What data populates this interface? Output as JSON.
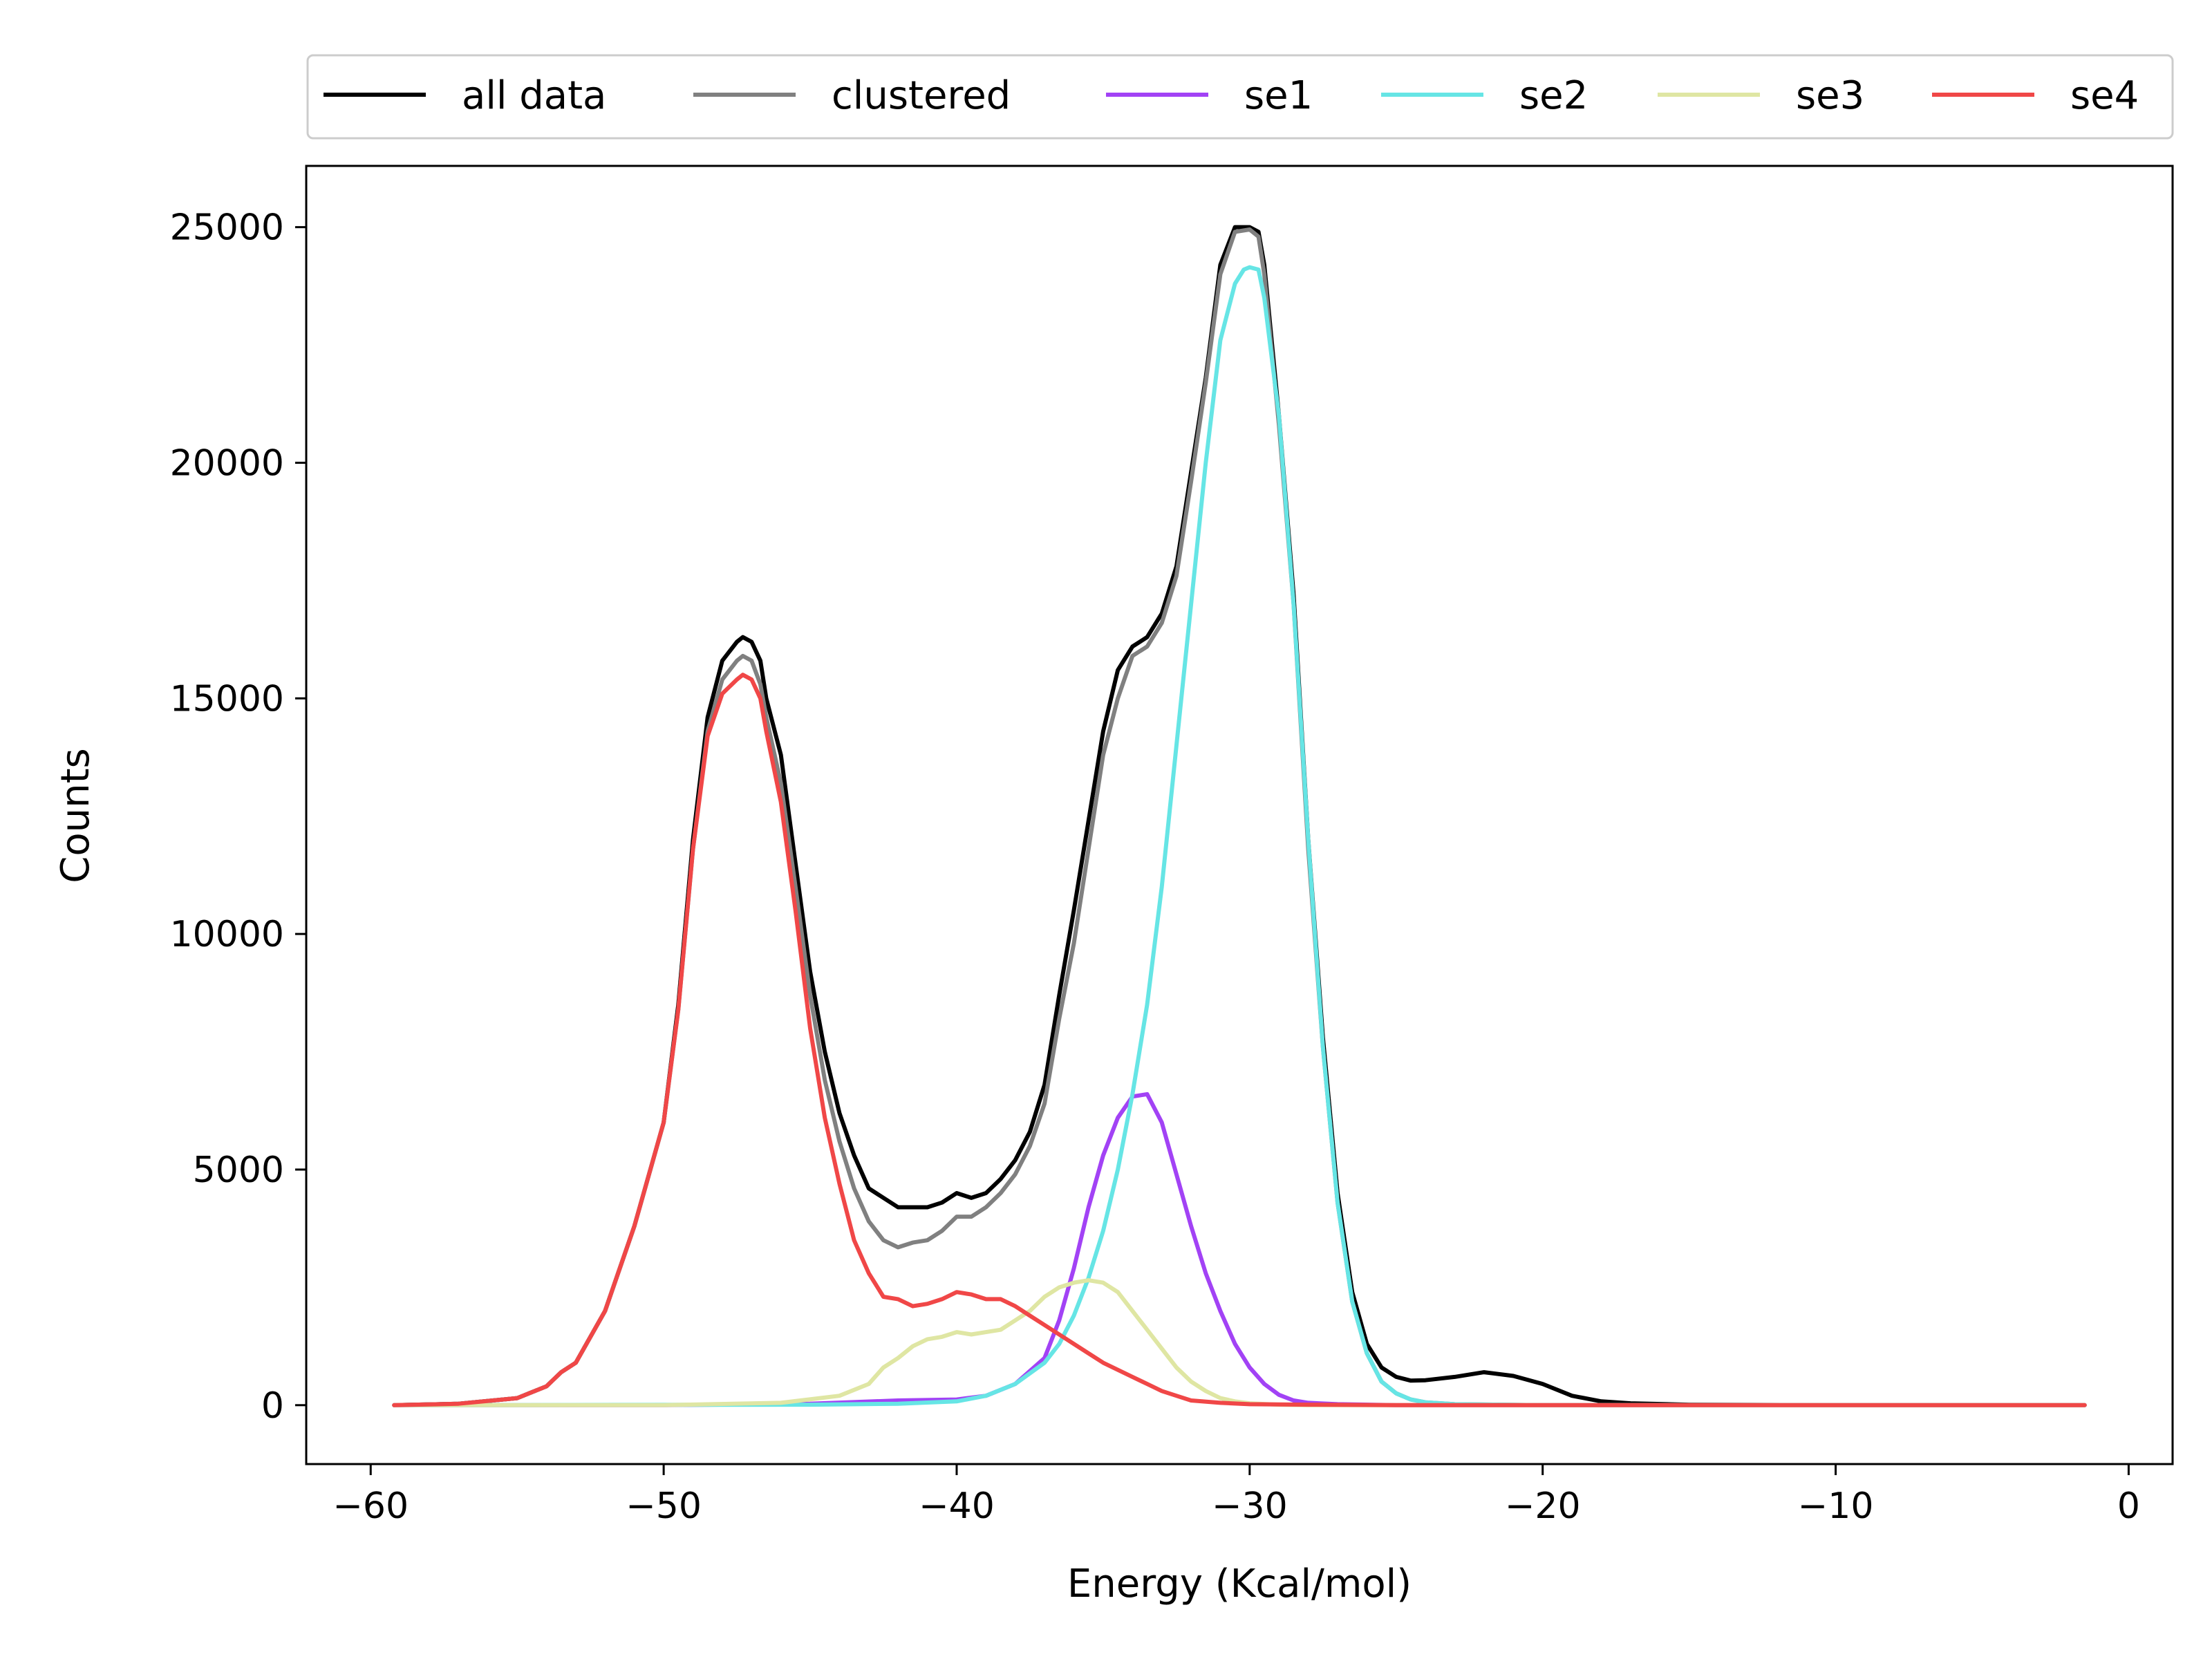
{
  "chart_data": {
    "type": "line",
    "title": "",
    "xlabel": "Energy (Kcal/mol)",
    "ylabel": "Counts",
    "xlim": [
      -62.2,
      1.5
    ],
    "ylim": [
      -1250,
      26300
    ],
    "xticks": [
      -60,
      -50,
      -40,
      -30,
      -20,
      -10,
      0
    ],
    "xtick_labels": [
      "−60",
      "−50",
      "−40",
      "−30",
      "−20",
      "−10",
      "0"
    ],
    "yticks": [
      0,
      5000,
      10000,
      15000,
      20000,
      25000
    ],
    "ytick_labels": [
      "0",
      "5000",
      "10000",
      "15000",
      "20000",
      "25000"
    ],
    "grid": false,
    "legend_placement": "top, above plot, single row",
    "series": [
      {
        "name": "all data",
        "color": "#000000",
        "x": [
          -59.2,
          -57,
          -55,
          -54,
          -53.5,
          -53,
          -52,
          -51,
          -50,
          -49.5,
          -49,
          -48.5,
          -48,
          -47.5,
          -47.3,
          -47,
          -46.7,
          -46.5,
          -46,
          -45.5,
          -45,
          -44.5,
          -44,
          -43.5,
          -43,
          -42.5,
          -42,
          -41.5,
          -41,
          -40.5,
          -40,
          -39.5,
          -39,
          -38.5,
          -38,
          -37.5,
          -37,
          -36.5,
          -36,
          -35.5,
          -35,
          -34.5,
          -34,
          -33.5,
          -33,
          -32.5,
          -32,
          -31.5,
          -31,
          -30.5,
          -30,
          -29.7,
          -29.5,
          -29,
          -28.5,
          -28,
          -27.5,
          -27,
          -26.5,
          -26,
          -25.5,
          -25,
          -24.5,
          -24,
          -23,
          -22,
          -21,
          -20,
          -19,
          -18,
          -17,
          -15,
          -10,
          -5,
          -1.5
        ],
        "y": [
          0,
          30,
          150,
          400,
          700,
          900,
          2000,
          3800,
          6000,
          8500,
          12000,
          14600,
          15800,
          16200,
          16300,
          16200,
          15800,
          15000,
          13800,
          11500,
          9200,
          7500,
          6200,
          5300,
          4600,
          4400,
          4200,
          4200,
          4200,
          4300,
          4500,
          4400,
          4500,
          4800,
          5200,
          5800,
          6800,
          8700,
          10500,
          12400,
          14300,
          15600,
          16100,
          16300,
          16800,
          17800,
          19800,
          21800,
          24200,
          25000,
          25000,
          24900,
          24200,
          21000,
          17200,
          12000,
          7800,
          4500,
          2400,
          1300,
          800,
          600,
          520,
          530,
          600,
          700,
          620,
          450,
          200,
          80,
          40,
          10,
          0,
          0,
          0
        ]
      },
      {
        "name": "clustered",
        "color": "#808080",
        "x": [
          -59.2,
          -57,
          -55,
          -54,
          -53.5,
          -53,
          -52,
          -51,
          -50,
          -49.5,
          -49,
          -48.5,
          -48,
          -47.5,
          -47.3,
          -47,
          -46.7,
          -46.5,
          -46,
          -45.5,
          -45,
          -44.5,
          -44,
          -43.5,
          -43,
          -42.5,
          -42,
          -41.5,
          -41,
          -40.5,
          -40,
          -39.5,
          -39,
          -38.5,
          -38,
          -37.5,
          -37,
          -36.5,
          -36,
          -35.5,
          -35,
          -34.5,
          -34,
          -33.5,
          -33,
          -32.5,
          -32,
          -31.5,
          -31,
          -30.5,
          -30,
          -29.7,
          -29.5,
          -29,
          -28.5,
          -28,
          -27.5,
          -27,
          -26.5,
          -26,
          -25.5,
          -25,
          -24.5,
          -24,
          -23,
          -20,
          -10,
          -1.5
        ],
        "y": [
          0,
          30,
          150,
          400,
          700,
          900,
          2000,
          3800,
          6000,
          8400,
          11800,
          14300,
          15400,
          15800,
          15900,
          15800,
          15300,
          14600,
          13200,
          11000,
          8700,
          6900,
          5600,
          4600,
          3900,
          3500,
          3350,
          3450,
          3500,
          3700,
          4000,
          4000,
          4200,
          4500,
          4900,
          5500,
          6400,
          8200,
          9800,
          11800,
          13800,
          15000,
          15900,
          16100,
          16600,
          17600,
          19600,
          21700,
          24000,
          24900,
          24950,
          24800,
          24000,
          20800,
          17000,
          11800,
          7600,
          4300,
          2200,
          1100,
          500,
          250,
          120,
          60,
          20,
          0,
          0,
          0
        ]
      },
      {
        "name": "se1",
        "color": "#a242f5",
        "x": [
          -59.2,
          -50,
          -45,
          -42,
          -40,
          -39,
          -38,
          -37,
          -36.5,
          -36,
          -35.5,
          -35,
          -34.5,
          -34,
          -33.5,
          -33,
          -32.5,
          -32,
          -31.5,
          -31,
          -30.5,
          -30,
          -29.5,
          -29,
          -28.5,
          -28,
          -27,
          -25,
          -20,
          -1.5
        ],
        "y": [
          0,
          0,
          30,
          100,
          120,
          200,
          450,
          1000,
          1800,
          2900,
          4200,
          5300,
          6100,
          6550,
          6600,
          6000,
          4900,
          3800,
          2800,
          2000,
          1300,
          800,
          450,
          220,
          100,
          50,
          20,
          0,
          0,
          0
        ]
      },
      {
        "name": "se2",
        "color": "#66e5e5",
        "x": [
          -59.2,
          -45,
          -42,
          -40,
          -39,
          -38,
          -37,
          -36.5,
          -36,
          -35.5,
          -35,
          -34.5,
          -34,
          -33.5,
          -33,
          -32.5,
          -32,
          -31.5,
          -31,
          -30.5,
          -30.2,
          -30,
          -29.7,
          -29.5,
          -29,
          -28.5,
          -28,
          -27.5,
          -27,
          -26.5,
          -26,
          -25.5,
          -25,
          -24.5,
          -24,
          -23,
          -20,
          -10,
          -1.5
        ],
        "y": [
          0,
          10,
          30,
          80,
          200,
          450,
          900,
          1300,
          1900,
          2700,
          3700,
          5000,
          6600,
          8500,
          11000,
          14000,
          17000,
          20000,
          22600,
          23800,
          24100,
          24150,
          24100,
          23500,
          21000,
          17000,
          12000,
          7600,
          4300,
          2200,
          1100,
          500,
          250,
          120,
          60,
          20,
          0,
          0,
          0
        ]
      },
      {
        "name": "se3",
        "color": "#dfe6a3",
        "x": [
          -59.2,
          -50,
          -46,
          -44,
          -43,
          -42.5,
          -42,
          -41.5,
          -41,
          -40.5,
          -40,
          -39.5,
          -39,
          -38.5,
          -38,
          -37.5,
          -37,
          -36.5,
          -36,
          -35.5,
          -35,
          -34.5,
          -34,
          -33.5,
          -33,
          -32.5,
          -32,
          -31.5,
          -31,
          -30.5,
          -30,
          -29,
          -28,
          -25,
          -20,
          -1.5
        ],
        "y": [
          0,
          0,
          50,
          200,
          450,
          800,
          1000,
          1250,
          1400,
          1450,
          1550,
          1500,
          1550,
          1600,
          1800,
          2000,
          2300,
          2500,
          2600,
          2650,
          2600,
          2400,
          2000,
          1600,
          1200,
          800,
          500,
          300,
          150,
          80,
          40,
          10,
          0,
          0,
          0,
          0
        ]
      },
      {
        "name": "se4",
        "color": "#f04747",
        "x": [
          -59.2,
          -57,
          -55,
          -54,
          -53.5,
          -53,
          -52,
          -51,
          -50,
          -49.5,
          -49,
          -48.5,
          -48,
          -47.5,
          -47.3,
          -47,
          -46.7,
          -46.5,
          -46,
          -45.5,
          -45,
          -44.5,
          -44,
          -43.5,
          -43,
          -42.5,
          -42,
          -41.5,
          -41,
          -40.5,
          -40,
          -39.5,
          -39,
          -38.5,
          -38,
          -37.5,
          -37,
          -36.5,
          -36,
          -35.5,
          -35,
          -34.5,
          -34,
          -33.5,
          -33,
          -32.5,
          -32,
          -31,
          -30,
          -28,
          -25,
          -20,
          -10,
          -1.5
        ],
        "y": [
          0,
          30,
          150,
          400,
          700,
          900,
          2000,
          3800,
          6000,
          8400,
          11800,
          14200,
          15100,
          15400,
          15500,
          15400,
          15000,
          14300,
          12800,
          10500,
          8000,
          6100,
          4700,
          3500,
          2800,
          2300,
          2250,
          2100,
          2150,
          2250,
          2400,
          2350,
          2250,
          2250,
          2100,
          1900,
          1700,
          1500,
          1300,
          1100,
          900,
          750,
          600,
          450,
          300,
          200,
          100,
          50,
          20,
          10,
          0,
          0,
          0,
          0
        ]
      }
    ]
  }
}
